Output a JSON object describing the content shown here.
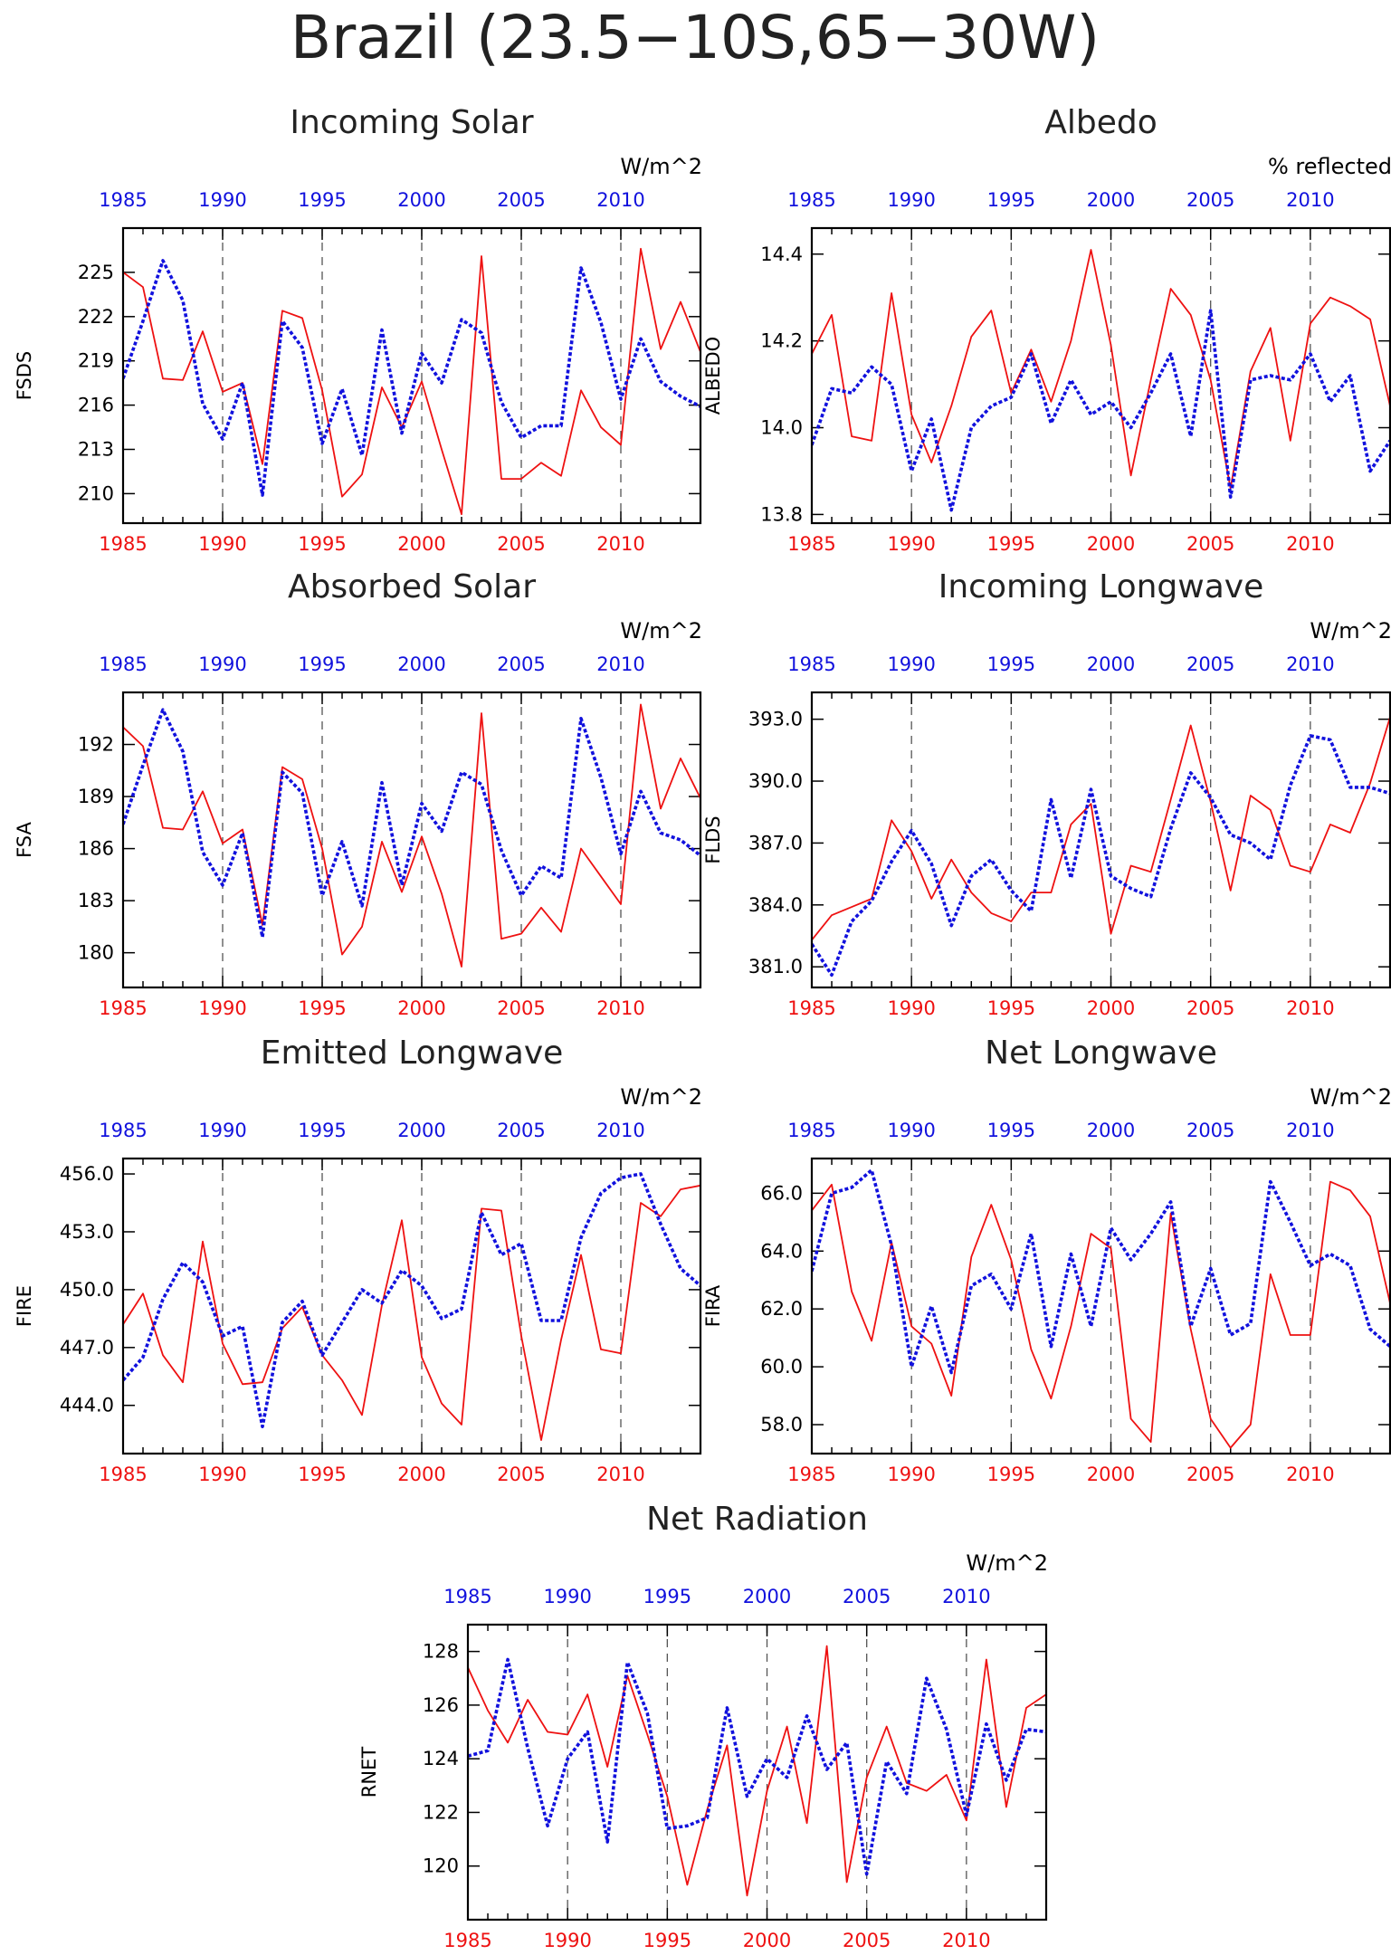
{
  "figure_title": "Brazil (23.5−10S,65−30W)",
  "colors": {
    "red": "#ee1111",
    "blue": "#1111dd",
    "axis": "#000000"
  },
  "chart_data": [
    {
      "type": "line",
      "title": "Incoming Solar",
      "ylabel": "FSDS",
      "units": "W/m^2",
      "ylim": [
        208,
        228
      ],
      "yticks": [
        210,
        213,
        216,
        219,
        222,
        225
      ],
      "ytick_labels": [
        "210",
        "213",
        "216",
        "219",
        "222",
        "225"
      ],
      "xlim": [
        1985,
        2014
      ],
      "xticks": [
        1985,
        1990,
        1995,
        2000,
        2005,
        2010
      ],
      "xtick_labels": [
        "1985",
        "1990",
        "1995",
        "2000",
        "2005",
        "2010"
      ],
      "x": [
        1985,
        1986,
        1987,
        1988,
        1989,
        1990,
        1991,
        1992,
        1993,
        1994,
        1995,
        1996,
        1997,
        1998,
        1999,
        2000,
        2001,
        2002,
        2003,
        2004,
        2005,
        2006,
        2007,
        2008,
        2009,
        2010,
        2011,
        2012,
        2013,
        2014
      ],
      "series": [
        {
          "color": "red",
          "style": "solid",
          "values": [
            225.0,
            224.0,
            217.8,
            217.7,
            221.0,
            216.9,
            217.5,
            212.0,
            222.4,
            221.9,
            217.0,
            209.8,
            211.3,
            217.2,
            214.5,
            217.6,
            213.0,
            208.6,
            226.1,
            211.0,
            211.0,
            212.1,
            211.2,
            217.0,
            214.5,
            213.3,
            226.6,
            219.8,
            223.0,
            219.6
          ]
        },
        {
          "color": "blue",
          "style": "dotted",
          "values": [
            217.8,
            221.7,
            225.8,
            223.1,
            216.1,
            213.7,
            217.5,
            209.9,
            221.7,
            219.9,
            213.4,
            217.1,
            212.6,
            221.1,
            214.1,
            219.5,
            217.5,
            221.8,
            220.9,
            216.2,
            213.8,
            214.6,
            214.6,
            225.3,
            221.6,
            216.4,
            220.5,
            217.6,
            216.6,
            215.9
          ]
        }
      ]
    },
    {
      "type": "line",
      "title": "Albedo",
      "ylabel": "ALBEDO",
      "units": "% reflected",
      "ylim": [
        13.78,
        14.46
      ],
      "yticks": [
        13.8,
        14.0,
        14.2,
        14.4
      ],
      "ytick_labels": [
        "13.8",
        "14.0",
        "14.2",
        "14.4"
      ],
      "xlim": [
        1985,
        2014
      ],
      "xticks": [
        1985,
        1990,
        1995,
        2000,
        2005,
        2010
      ],
      "xtick_labels": [
        "1985",
        "1990",
        "1995",
        "2000",
        "2005",
        "2010"
      ],
      "x": [
        1985,
        1986,
        1987,
        1988,
        1989,
        1990,
        1991,
        1992,
        1993,
        1994,
        1995,
        1996,
        1997,
        1998,
        1999,
        2000,
        2001,
        2002,
        2003,
        2004,
        2005,
        2006,
        2007,
        2008,
        2009,
        2010,
        2011,
        2012,
        2013,
        2014
      ],
      "series": [
        {
          "color": "red",
          "style": "solid",
          "values": [
            14.17,
            14.26,
            13.98,
            13.97,
            14.31,
            14.03,
            13.92,
            14.05,
            14.21,
            14.27,
            14.08,
            14.18,
            14.06,
            14.2,
            14.41,
            14.19,
            13.89,
            14.11,
            14.32,
            14.26,
            14.11,
            13.86,
            14.13,
            14.23,
            13.97,
            14.24,
            14.3,
            14.28,
            14.25,
            14.05
          ]
        },
        {
          "color": "blue",
          "style": "dotted",
          "values": [
            13.96,
            14.09,
            14.08,
            14.14,
            14.1,
            13.9,
            14.02,
            13.81,
            14.0,
            14.05,
            14.07,
            14.17,
            14.01,
            14.11,
            14.03,
            14.06,
            14.0,
            14.08,
            14.17,
            13.98,
            14.27,
            13.84,
            14.11,
            14.12,
            14.11,
            14.17,
            14.06,
            14.12,
            13.9,
            13.97
          ]
        }
      ]
    },
    {
      "type": "line",
      "title": "Absorbed Solar",
      "ylabel": "FSA",
      "units": "W/m^2",
      "ylim": [
        178,
        195
      ],
      "yticks": [
        180,
        183,
        186,
        189,
        192
      ],
      "ytick_labels": [
        "180",
        "183",
        "186",
        "189",
        "192"
      ],
      "xlim": [
        1985,
        2014
      ],
      "xticks": [
        1985,
        1990,
        1995,
        2000,
        2005,
        2010
      ],
      "xtick_labels": [
        "1985",
        "1990",
        "1995",
        "2000",
        "2005",
        "2010"
      ],
      "x": [
        1985,
        1986,
        1987,
        1988,
        1989,
        1990,
        1991,
        1992,
        1993,
        1994,
        1995,
        1996,
        1997,
        1998,
        1999,
        2000,
        2001,
        2002,
        2003,
        2004,
        2005,
        2006,
        2007,
        2008,
        2009,
        2010,
        2011,
        2012,
        2013,
        2014
      ],
      "series": [
        {
          "color": "red",
          "style": "solid",
          "values": [
            193.0,
            191.9,
            187.2,
            187.1,
            189.3,
            186.3,
            187.1,
            181.6,
            190.7,
            190.0,
            186.0,
            179.9,
            181.5,
            186.4,
            183.5,
            186.7,
            183.4,
            179.2,
            193.8,
            180.8,
            181.1,
            182.6,
            181.2,
            186.0,
            184.4,
            182.8,
            194.3,
            188.3,
            191.2,
            188.9
          ]
        },
        {
          "color": "blue",
          "style": "dotted",
          "values": [
            187.4,
            190.8,
            194.0,
            191.6,
            185.8,
            183.9,
            186.9,
            180.9,
            190.4,
            189.2,
            183.3,
            186.4,
            182.7,
            189.8,
            183.9,
            188.6,
            187.0,
            190.4,
            189.7,
            185.9,
            183.3,
            185.0,
            184.3,
            193.5,
            190.1,
            185.7,
            189.3,
            186.9,
            186.5,
            185.6
          ]
        }
      ]
    },
    {
      "type": "line",
      "title": "Incoming Longwave",
      "ylabel": "FLDS",
      "units": "W/m^2",
      "ylim": [
        380.0,
        394.3
      ],
      "yticks": [
        381.0,
        384.0,
        387.0,
        390.0,
        393.0
      ],
      "ytick_labels": [
        "381.0",
        "384.0",
        "387.0",
        "390.0",
        "393.0"
      ],
      "xlim": [
        1985,
        2014
      ],
      "xticks": [
        1985,
        1990,
        1995,
        2000,
        2005,
        2010
      ],
      "xtick_labels": [
        "1985",
        "1990",
        "1995",
        "2000",
        "2005",
        "2010"
      ],
      "x": [
        1985,
        1986,
        1987,
        1988,
        1989,
        1990,
        1991,
        1992,
        1993,
        1994,
        1995,
        1996,
        1997,
        1998,
        1999,
        2000,
        2001,
        2002,
        2003,
        2004,
        2005,
        2006,
        2007,
        2008,
        2009,
        2010,
        2011,
        2012,
        2013,
        2014
      ],
      "series": [
        {
          "color": "red",
          "style": "solid",
          "values": [
            382.3,
            383.5,
            383.9,
            384.3,
            388.1,
            386.6,
            384.3,
            386.2,
            384.6,
            383.6,
            383.2,
            384.6,
            384.6,
            387.9,
            388.9,
            382.6,
            385.9,
            385.6,
            389.1,
            392.7,
            389.0,
            384.7,
            389.3,
            388.6,
            385.9,
            385.6,
            387.9,
            387.5,
            389.9,
            393.1
          ]
        },
        {
          "color": "blue",
          "style": "dotted",
          "values": [
            382.1,
            380.6,
            383.2,
            384.2,
            386.1,
            387.6,
            386.0,
            383.0,
            385.4,
            386.2,
            384.7,
            383.7,
            389.1,
            385.3,
            389.6,
            385.4,
            384.8,
            384.4,
            387.7,
            390.4,
            389.2,
            387.4,
            387.0,
            386.2,
            389.8,
            392.2,
            392.0,
            389.7,
            389.7,
            389.4
          ]
        }
      ]
    },
    {
      "type": "line",
      "title": "Emitted Longwave",
      "ylabel": "FIRE",
      "units": "W/m^2",
      "ylim": [
        441.5,
        456.8
      ],
      "yticks": [
        444.0,
        447.0,
        450.0,
        453.0,
        456.0
      ],
      "ytick_labels": [
        "444.0",
        "447.0",
        "450.0",
        "453.0",
        "456.0"
      ],
      "xlim": [
        1985,
        2014
      ],
      "xticks": [
        1985,
        1990,
        1995,
        2000,
        2005,
        2010
      ],
      "xtick_labels": [
        "1985",
        "1990",
        "1995",
        "2000",
        "2005",
        "2010"
      ],
      "x": [
        1985,
        1986,
        1987,
        1988,
        1989,
        1990,
        1991,
        1992,
        1993,
        1994,
        1995,
        1996,
        1997,
        1998,
        1999,
        2000,
        2001,
        2002,
        2003,
        2004,
        2005,
        2006,
        2007,
        2008,
        2009,
        2010,
        2011,
        2012,
        2013,
        2014
      ],
      "series": [
        {
          "color": "red",
          "style": "solid",
          "values": [
            448.2,
            449.8,
            446.6,
            445.2,
            452.5,
            447.2,
            445.1,
            445.2,
            448.0,
            449.1,
            446.6,
            445.3,
            443.5,
            449.2,
            453.6,
            446.5,
            444.1,
            443.0,
            454.2,
            454.1,
            447.6,
            442.2,
            447.4,
            451.8,
            446.9,
            446.7,
            454.5,
            453.8,
            455.2,
            455.4
          ]
        },
        {
          "color": "blue",
          "style": "dotted",
          "values": [
            445.3,
            446.5,
            449.5,
            451.4,
            450.4,
            447.6,
            448.1,
            442.9,
            448.3,
            449.4,
            446.6,
            448.3,
            450.0,
            449.3,
            451.0,
            450.2,
            448.5,
            449.0,
            454.0,
            451.8,
            452.4,
            448.4,
            448.4,
            452.7,
            455.0,
            455.8,
            456.0,
            453.4,
            451.1,
            450.2
          ]
        }
      ]
    },
    {
      "type": "line",
      "title": "Net Longwave",
      "ylabel": "FIRA",
      "units": "W/m^2",
      "ylim": [
        57.0,
        67.2
      ],
      "yticks": [
        58.0,
        60.0,
        62.0,
        64.0,
        66.0
      ],
      "ytick_labels": [
        "58.0",
        "60.0",
        "62.0",
        "64.0",
        "66.0"
      ],
      "xlim": [
        1985,
        2014
      ],
      "xticks": [
        1985,
        1990,
        1995,
        2000,
        2005,
        2010
      ],
      "xtick_labels": [
        "1985",
        "1990",
        "1995",
        "2000",
        "2005",
        "2010"
      ],
      "x": [
        1985,
        1986,
        1987,
        1988,
        1989,
        1990,
        1991,
        1992,
        1993,
        1994,
        1995,
        1996,
        1997,
        1998,
        1999,
        2000,
        2001,
        2002,
        2003,
        2004,
        2005,
        2006,
        2007,
        2008,
        2009,
        2010,
        2011,
        2012,
        2013,
        2014
      ],
      "series": [
        {
          "color": "red",
          "style": "solid",
          "values": [
            65.4,
            66.3,
            62.6,
            60.9,
            64.3,
            61.4,
            60.8,
            59.0,
            63.8,
            65.6,
            63.7,
            60.6,
            58.9,
            61.4,
            64.6,
            64.1,
            58.2,
            57.4,
            65.3,
            61.3,
            58.2,
            57.2,
            58.0,
            63.2,
            61.1,
            61.1,
            66.4,
            66.1,
            65.2,
            62.2
          ]
        },
        {
          "color": "blue",
          "style": "dotted",
          "values": [
            63.3,
            66.0,
            66.2,
            66.8,
            64.2,
            60.0,
            62.1,
            59.8,
            62.8,
            63.2,
            62.0,
            64.6,
            60.7,
            63.9,
            61.4,
            64.8,
            63.7,
            64.6,
            65.7,
            61.4,
            63.4,
            61.1,
            61.5,
            66.4,
            65.0,
            63.5,
            63.9,
            63.5,
            61.3,
            60.7
          ]
        }
      ]
    },
    {
      "type": "line",
      "title": "Net Radiation",
      "ylabel": "RNET",
      "units": "W/m^2",
      "ylim": [
        118.0,
        129.0
      ],
      "yticks": [
        120,
        122,
        124,
        126,
        128
      ],
      "ytick_labels": [
        "120",
        "122",
        "124",
        "126",
        "128"
      ],
      "xlim": [
        1985,
        2014
      ],
      "xticks": [
        1985,
        1990,
        1995,
        2000,
        2005,
        2010
      ],
      "xtick_labels": [
        "1985",
        "1990",
        "1995",
        "2000",
        "2005",
        "2010"
      ],
      "x": [
        1985,
        1986,
        1987,
        1988,
        1989,
        1990,
        1991,
        1992,
        1993,
        1994,
        1995,
        1996,
        1997,
        1998,
        1999,
        2000,
        2001,
        2002,
        2003,
        2004,
        2005,
        2006,
        2007,
        2008,
        2009,
        2010,
        2011,
        2012,
        2013,
        2014
      ],
      "series": [
        {
          "color": "red",
          "style": "solid",
          "values": [
            127.4,
            125.8,
            124.6,
            126.2,
            125.0,
            124.9,
            126.4,
            123.7,
            127.1,
            124.9,
            122.6,
            119.3,
            122.1,
            124.5,
            118.9,
            122.8,
            125.2,
            121.6,
            128.2,
            119.4,
            123.3,
            125.2,
            123.1,
            122.8,
            123.4,
            121.7,
            127.7,
            122.2,
            125.9,
            126.4
          ]
        },
        {
          "color": "blue",
          "style": "dotted",
          "values": [
            124.1,
            124.3,
            127.7,
            124.4,
            121.5,
            124.0,
            125.0,
            120.9,
            127.6,
            125.7,
            121.4,
            121.5,
            121.8,
            125.9,
            122.6,
            124.0,
            123.3,
            125.6,
            123.6,
            124.6,
            119.7,
            123.9,
            122.7,
            127.0,
            125.1,
            121.9,
            125.3,
            123.2,
            125.1,
            125.0
          ]
        }
      ]
    }
  ]
}
